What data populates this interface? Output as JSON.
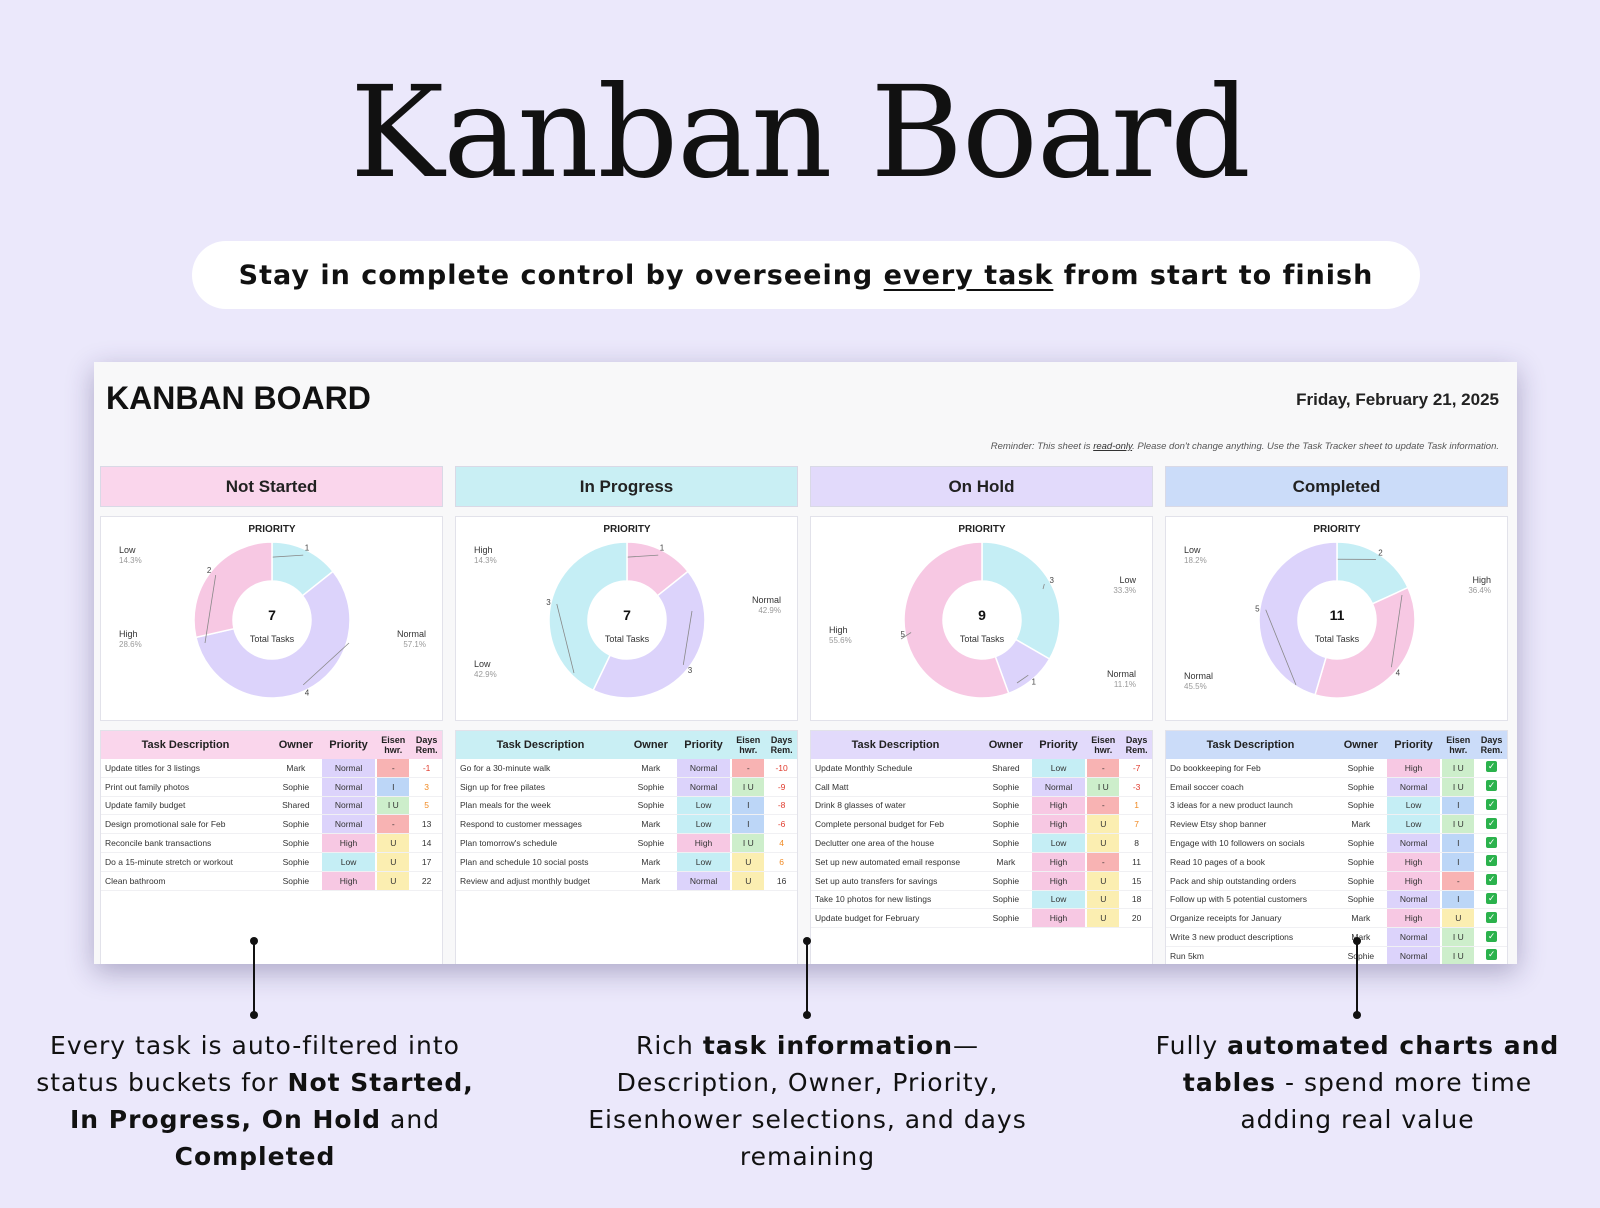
{
  "hero": {
    "title": "Kanban Board",
    "tagline_pre": "Stay in complete control by overseeing ",
    "tagline_underlined": "every task",
    "tagline_post": " from start to finish"
  },
  "sheet": {
    "title": "KANBAN BOARD",
    "date": "Friday, February 21, 2025",
    "reminder_pre": "Reminder: This sheet is ",
    "reminder_link": "read-only",
    "reminder_post": ". Please don't change anything. Use the Task Tracker sheet to update Task information.",
    "chart_title": "PRIORITY",
    "total_label": "Total Tasks",
    "table_headers": {
      "desc": "Task Description",
      "owner": "Owner",
      "priority": "Priority",
      "eisen": "Eisen hwr.",
      "days": "Days Rem."
    }
  },
  "colors": {
    "high": "#f7c8e3",
    "normal": "#dcd3fb",
    "low": "#c5eef5",
    "eis_red": "#f8b3b3",
    "eis_blue": "#bcd6f7",
    "eis_green": "#cdeecb",
    "eis_yellow": "#fbeeb1",
    "days_neg": "#e03b2d",
    "days_warn": "#f08a24"
  },
  "columns": [
    {
      "key": "not_started",
      "label": "Not Started",
      "head_color": "#fad6ec",
      "table_head_color": "#fad6ec",
      "total": "7",
      "chart_data": {
        "type": "pie",
        "title": "PRIORITY",
        "categories": [
          "Low",
          "Normal",
          "High"
        ],
        "values": [
          1,
          4,
          2
        ],
        "percents": [
          "14.3%",
          "57.1%",
          "28.6%"
        ]
      },
      "tasks": [
        {
          "desc": "Update titles for 3 listings",
          "owner": "Mark",
          "priority": "Normal",
          "eis": "-",
          "eis_color": "red",
          "days": "-1"
        },
        {
          "desc": "Print out family photos",
          "owner": "Sophie",
          "priority": "Normal",
          "eis": "I",
          "eis_color": "blue",
          "days": "3"
        },
        {
          "desc": "Update family budget",
          "owner": "Shared",
          "priority": "Normal",
          "eis": "I U",
          "eis_color": "green",
          "days": "5"
        },
        {
          "desc": "Design promotional sale for Feb",
          "owner": "Sophie",
          "priority": "Normal",
          "eis": "-",
          "eis_color": "red",
          "days": "13"
        },
        {
          "desc": "Reconcile bank transactions",
          "owner": "Sophie",
          "priority": "High",
          "eis": "U",
          "eis_color": "yellow",
          "days": "14"
        },
        {
          "desc": "Do a 15-minute stretch or workout",
          "owner": "Sophie",
          "priority": "Low",
          "eis": "U",
          "eis_color": "yellow",
          "days": "17"
        },
        {
          "desc": "Clean bathroom",
          "owner": "Sophie",
          "priority": "High",
          "eis": "U",
          "eis_color": "yellow",
          "days": "22"
        }
      ]
    },
    {
      "key": "in_progress",
      "label": "In Progress",
      "head_color": "#c9eff4",
      "table_head_color": "#c9eff4",
      "total": "7",
      "chart_data": {
        "type": "pie",
        "title": "PRIORITY",
        "categories": [
          "High",
          "Normal",
          "Low"
        ],
        "values": [
          1,
          3,
          3
        ],
        "percents": [
          "14.3%",
          "42.9%",
          "42.9%"
        ]
      },
      "tasks": [
        {
          "desc": "Go for a 30-minute walk",
          "owner": "Mark",
          "priority": "Normal",
          "eis": "-",
          "eis_color": "red",
          "days": "-10"
        },
        {
          "desc": "Sign up for free pilates",
          "owner": "Sophie",
          "priority": "Normal",
          "eis": "I U",
          "eis_color": "green",
          "days": "-9"
        },
        {
          "desc": "Plan meals for the week",
          "owner": "Sophie",
          "priority": "Low",
          "eis": "I",
          "eis_color": "blue",
          "days": "-8"
        },
        {
          "desc": "Respond to customer messages",
          "owner": "Mark",
          "priority": "Low",
          "eis": "I",
          "eis_color": "blue",
          "days": "-6"
        },
        {
          "desc": "Plan tomorrow's schedule",
          "owner": "Sophie",
          "priority": "High",
          "eis": "I U",
          "eis_color": "green",
          "days": "4"
        },
        {
          "desc": "Plan and schedule 10 social posts",
          "owner": "Mark",
          "priority": "Low",
          "eis": "U",
          "eis_color": "yellow",
          "days": "6"
        },
        {
          "desc": "Review and adjust monthly budget",
          "owner": "Mark",
          "priority": "Normal",
          "eis": "U",
          "eis_color": "yellow",
          "days": "16"
        }
      ]
    },
    {
      "key": "on_hold",
      "label": "On Hold",
      "head_color": "#e2dafb",
      "table_head_color": "#e2dafb",
      "total": "9",
      "chart_data": {
        "type": "pie",
        "title": "PRIORITY",
        "categories": [
          "Low",
          "Normal",
          "High"
        ],
        "values": [
          3,
          1,
          5
        ],
        "percents": [
          "33.3%",
          "11.1%",
          "55.6%"
        ]
      },
      "tasks": [
        {
          "desc": "Update Monthly Schedule",
          "owner": "Shared",
          "priority": "Low",
          "eis": "-",
          "eis_color": "red",
          "days": "-7"
        },
        {
          "desc": "Call Matt",
          "owner": "Sophie",
          "priority": "Normal",
          "eis": "I U",
          "eis_color": "green",
          "days": "-3"
        },
        {
          "desc": "Drink 8 glasses of water",
          "owner": "Sophie",
          "priority": "High",
          "eis": "-",
          "eis_color": "red",
          "days": "1"
        },
        {
          "desc": "Complete personal budget for Feb",
          "owner": "Sophie",
          "priority": "High",
          "eis": "U",
          "eis_color": "yellow",
          "days": "7"
        },
        {
          "desc": "Declutter one area of the house",
          "owner": "Sophie",
          "priority": "Low",
          "eis": "U",
          "eis_color": "yellow",
          "days": "8"
        },
        {
          "desc": "Set up new automated email response",
          "owner": "Mark",
          "priority": "High",
          "eis": "-",
          "eis_color": "red",
          "days": "11"
        },
        {
          "desc": "Set up auto transfers for savings",
          "owner": "Sophie",
          "priority": "High",
          "eis": "U",
          "eis_color": "yellow",
          "days": "15"
        },
        {
          "desc": "Take 10 photos for new listings",
          "owner": "Sophie",
          "priority": "Low",
          "eis": "U",
          "eis_color": "yellow",
          "days": "18"
        },
        {
          "desc": "Update budget for February",
          "owner": "Sophie",
          "priority": "High",
          "eis": "U",
          "eis_color": "yellow",
          "days": "20"
        }
      ]
    },
    {
      "key": "completed",
      "label": "Completed",
      "head_color": "#cbdcf9",
      "table_head_color": "#cbdcf9",
      "total": "11",
      "chart_data": {
        "type": "pie",
        "title": "PRIORITY",
        "categories": [
          "Low",
          "High",
          "Normal"
        ],
        "values": [
          2,
          4,
          5
        ],
        "percents": [
          "18.2%",
          "36.4%",
          "45.5%"
        ]
      },
      "tasks": [
        {
          "desc": "Do bookkeeping for Feb",
          "owner": "Sophie",
          "priority": "High",
          "eis": "I U",
          "eis_color": "green",
          "days": "check"
        },
        {
          "desc": "Email soccer coach",
          "owner": "Sophie",
          "priority": "Normal",
          "eis": "I U",
          "eis_color": "green",
          "days": "check"
        },
        {
          "desc": "3 ideas for a new product launch",
          "owner": "Sophie",
          "priority": "Low",
          "eis": "I",
          "eis_color": "blue",
          "days": "check"
        },
        {
          "desc": "Review Etsy shop banner",
          "owner": "Mark",
          "priority": "Low",
          "eis": "I U",
          "eis_color": "green",
          "days": "check"
        },
        {
          "desc": "Engage with 10 followers on socials",
          "owner": "Sophie",
          "priority": "Normal",
          "eis": "I",
          "eis_color": "blue",
          "days": "check"
        },
        {
          "desc": "Read 10 pages of a book",
          "owner": "Sophie",
          "priority": "High",
          "eis": "I",
          "eis_color": "blue",
          "days": "check"
        },
        {
          "desc": "Pack and ship outstanding orders",
          "owner": "Sophie",
          "priority": "High",
          "eis": "-",
          "eis_color": "red",
          "days": "check"
        },
        {
          "desc": "Follow up with 5 potential customers",
          "owner": "Sophie",
          "priority": "Normal",
          "eis": "I",
          "eis_color": "blue",
          "days": "check"
        },
        {
          "desc": "Organize receipts for January",
          "owner": "Mark",
          "priority": "High",
          "eis": "U",
          "eis_color": "yellow",
          "days": "check"
        },
        {
          "desc": "Write 3 new product descriptions",
          "owner": "Mark",
          "priority": "Normal",
          "eis": "I U",
          "eis_color": "green",
          "days": "check"
        },
        {
          "desc": "Run 5km",
          "owner": "Sophie",
          "priority": "Normal",
          "eis": "I U",
          "eis_color": "green",
          "days": "check"
        }
      ]
    }
  ],
  "captions": {
    "left": {
      "l1": "Every task is auto-filtered into",
      "l2_pre": "status buckets for ",
      "l2_b": "Not Started,",
      "l3_b": "In Progress, On Hold",
      "l3_post": " and",
      "l4_b": "Completed"
    },
    "middle": {
      "l1_pre": "Rich ",
      "l1_b": "task information",
      "l1_post": "—",
      "l2": "Description, Owner, Priority,",
      "l3": "Eisenhower selections, and days",
      "l4": "remaining"
    },
    "right": {
      "l1_pre": "Fully ",
      "l1_b": "automated charts and",
      "l2_b": "tables",
      "l2_post": " - spend more time",
      "l3": "adding real value"
    }
  }
}
